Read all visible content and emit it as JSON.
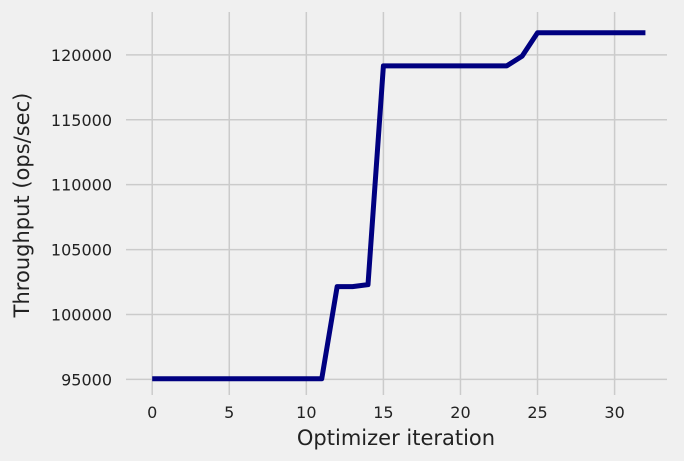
{
  "chart_data": {
    "type": "line",
    "title": "",
    "xlabel": "Optimizer iteration",
    "ylabel": "Throughput (ops/sec)",
    "xlim": [
      -1.7,
      33.4
    ],
    "ylim": [
      93800,
      123300
    ],
    "xticks": [
      0,
      5,
      10,
      15,
      20,
      25,
      30
    ],
    "xtick_labels": [
      "0",
      "5",
      "10",
      "15",
      "20",
      "25",
      "30"
    ],
    "yticks": [
      95000,
      100000,
      105000,
      110000,
      115000,
      120000
    ],
    "ytick_labels": [
      "95000",
      "100000",
      "105000",
      "110000",
      "115000",
      "120000"
    ],
    "grid": true,
    "series": [
      {
        "color": "#000080",
        "x": [
          0,
          1,
          2,
          3,
          4,
          5,
          6,
          7,
          8,
          9,
          10,
          11,
          12,
          13,
          14,
          15,
          16,
          17,
          18,
          19,
          20,
          21,
          22,
          23,
          24,
          25,
          26,
          27,
          28,
          29,
          30,
          31,
          32
        ],
        "y": [
          95050,
          95050,
          95050,
          95050,
          95050,
          95050,
          95050,
          95050,
          95050,
          95050,
          95050,
          95050,
          102150,
          102150,
          102300,
          119150,
          119150,
          119150,
          119150,
          119150,
          119150,
          119150,
          119150,
          119150,
          119900,
          121700,
          121700,
          121700,
          121700,
          121700,
          121700,
          121700,
          121700
        ]
      }
    ]
  }
}
